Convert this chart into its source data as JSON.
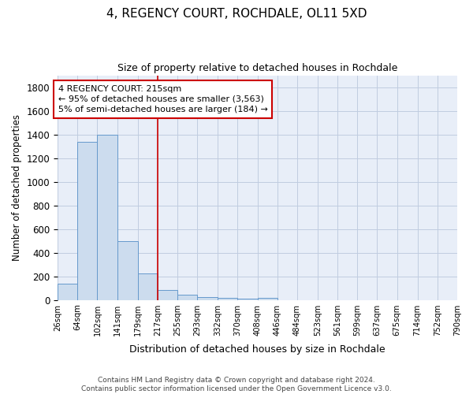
{
  "title": "4, REGENCY COURT, ROCHDALE, OL11 5XD",
  "subtitle": "Size of property relative to detached houses in Rochdale",
  "xlabel": "Distribution of detached houses by size in Rochdale",
  "ylabel": "Number of detached properties",
  "footer_line1": "Contains HM Land Registry data © Crown copyright and database right 2024.",
  "footer_line2": "Contains public sector information licensed under the Open Government Licence v3.0.",
  "bar_color": "#ccdcee",
  "bar_edge_color": "#6699cc",
  "grid_color": "#c0cce0",
  "background_color": "#e8eef8",
  "annotation_box_color": "#cc0000",
  "vline_color": "#cc0000",
  "annotation_text": "4 REGENCY COURT: 215sqm\n← 95% of detached houses are smaller (3,563)\n5% of semi-detached houses are larger (184) →",
  "property_bin_index": 5,
  "bins": [
    26,
    64,
    102,
    141,
    179,
    217,
    255,
    293,
    332,
    370,
    408,
    446,
    484,
    523,
    561,
    599,
    637,
    675,
    714,
    752,
    790
  ],
  "bin_labels": [
    "26sqm",
    "64sqm",
    "102sqm",
    "141sqm",
    "179sqm",
    "217sqm",
    "255sqm",
    "293sqm",
    "332sqm",
    "370sqm",
    "408sqm",
    "446sqm",
    "484sqm",
    "523sqm",
    "561sqm",
    "599sqm",
    "637sqm",
    "675sqm",
    "714sqm",
    "752sqm",
    "790sqm"
  ],
  "bar_heights": [
    140,
    1340,
    1400,
    495,
    225,
    85,
    45,
    25,
    15,
    10,
    15,
    0,
    0,
    0,
    0,
    0,
    0,
    0,
    0,
    0
  ],
  "ylim": [
    0,
    1900
  ],
  "yticks": [
    0,
    200,
    400,
    600,
    800,
    1000,
    1200,
    1400,
    1600,
    1800
  ],
  "figsize": [
    6.0,
    5.0
  ],
  "dpi": 100
}
